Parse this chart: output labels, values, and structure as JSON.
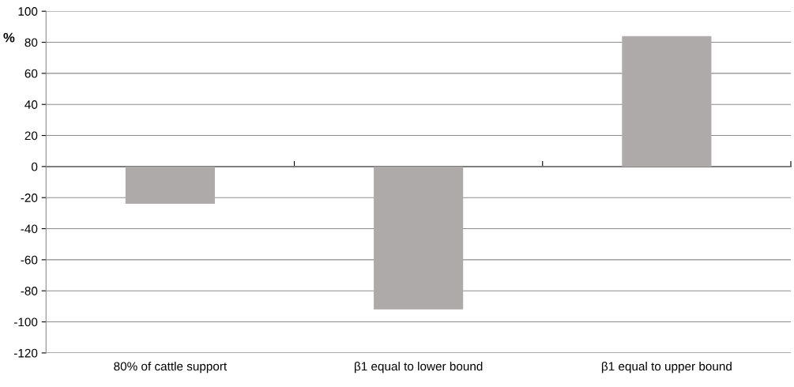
{
  "chart_data": {
    "type": "bar",
    "ylabel": "%",
    "categories": [
      "80% of cattle support",
      "β1 equal to lower bound",
      "β1 equal to upper bound"
    ],
    "values": [
      -24,
      -92,
      84
    ],
    "color": "#aeaaaa",
    "ylim": [
      -120,
      100
    ],
    "yticks": [
      -120,
      -100,
      -80,
      -60,
      -40,
      -20,
      0,
      20,
      40,
      60,
      80,
      100
    ],
    "grid": "y"
  }
}
